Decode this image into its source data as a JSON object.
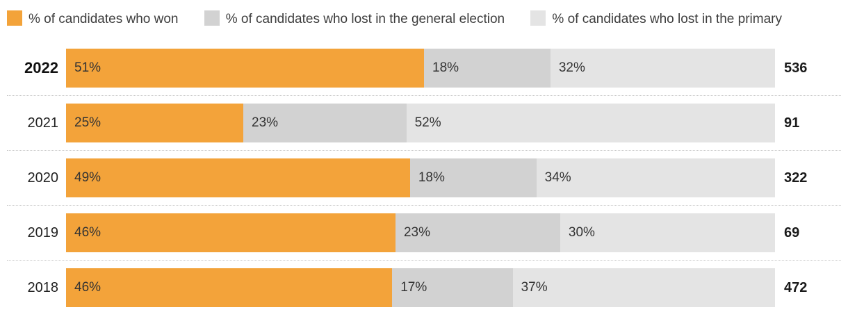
{
  "legend": {
    "items": [
      {
        "key": "won",
        "label": "% of candidates who won",
        "color": "#F3A33A"
      },
      {
        "key": "lost-general",
        "label": "% of candidates who lost in the general election",
        "color": "#D2D2D2"
      },
      {
        "key": "lost-primary",
        "label": "% of candidates who lost in the primary",
        "color": "#E4E4E4"
      }
    ]
  },
  "chart_data": {
    "type": "bar",
    "orientation": "horizontal",
    "stacked": true,
    "unit": "%",
    "legend_position": "top",
    "grid": "dotted-row-separators",
    "categories": [
      "2022",
      "2021",
      "2020",
      "2019",
      "2018"
    ],
    "emphasized_category": "2022",
    "series": [
      {
        "key": "won",
        "name": "% of candidates who won",
        "color": "#F3A33A",
        "values": [
          51,
          25,
          49,
          46,
          46
        ]
      },
      {
        "key": "lost-general",
        "name": "% of candidates who lost in the general election",
        "color": "#D2D2D2",
        "values": [
          18,
          23,
          18,
          23,
          17
        ]
      },
      {
        "key": "lost-primary",
        "name": "% of candidates who lost in the primary",
        "color": "#E4E4E4",
        "values": [
          32,
          52,
          34,
          30,
          37
        ]
      }
    ],
    "value_labels": [
      [
        "51%",
        "18%",
        "32%"
      ],
      [
        "25%",
        "23%",
        "52%"
      ],
      [
        "49%",
        "18%",
        "34%"
      ],
      [
        "46%",
        "23%",
        "30%"
      ],
      [
        "46%",
        "17%",
        "37%"
      ]
    ],
    "totals": [
      "536",
      "91",
      "322",
      "69",
      "472"
    ]
  }
}
